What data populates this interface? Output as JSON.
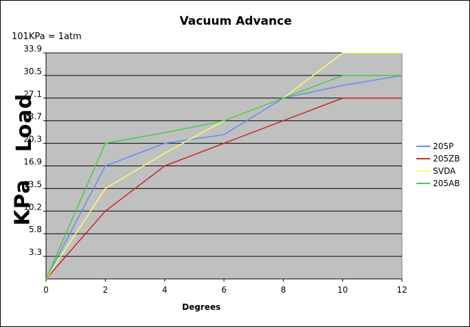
{
  "chart_data": {
    "type": "line",
    "title": "Vacuum Advance",
    "annotation": "101KPa = 1atm",
    "xlabel": "Degrees",
    "ylabel_handwritten_top": "Load",
    "ylabel_handwritten_bottom": "KPa",
    "x": [
      0,
      2,
      4,
      6,
      8,
      10,
      12
    ],
    "x_ticks": [
      "0",
      "2",
      "4",
      "6",
      "8",
      "10",
      "12"
    ],
    "y_tick_labels": [
      "3.3",
      "5.8",
      "10.2",
      "13.5",
      "16.9",
      "20.3",
      "23.7",
      "27.1",
      "30.5",
      "33.9"
    ],
    "xlim": [
      0,
      12
    ],
    "ylim_index": [
      0,
      10
    ],
    "grid": "horizontal",
    "legend_position": "right",
    "plot_background": "#c0c0c0",
    "series": [
      {
        "name": "205P",
        "color": "#5b8ff9",
        "values": [
          0,
          16.9,
          20.3,
          21.6,
          27.1,
          29.0,
          30.5
        ]
      },
      {
        "name": "205ZB",
        "color": "#cc2222",
        "values": [
          0,
          10.2,
          16.9,
          20.3,
          23.7,
          27.1,
          27.1
        ]
      },
      {
        "name": "SVDA",
        "color": "#ffff66",
        "values": [
          0,
          13.5,
          18.8,
          23.7,
          27.1,
          33.9,
          33.9
        ]
      },
      {
        "name": "205AB",
        "color": "#44cc44",
        "values": [
          0,
          20.3,
          21.9,
          23.7,
          27.1,
          30.5,
          30.5
        ]
      }
    ]
  }
}
